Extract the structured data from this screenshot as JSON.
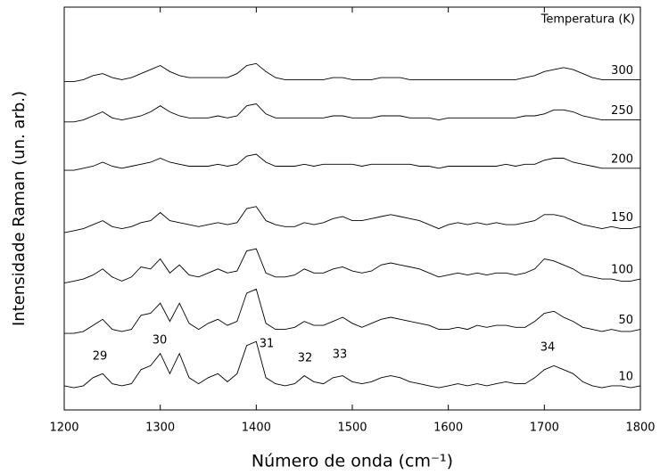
{
  "chart_data": {
    "type": "line",
    "xlabel": "Número de onda (cm⁻¹)",
    "ylabel": "Intensidade Raman (un. arb.)",
    "legend_title": "Temperatura (K)",
    "annotations": [
      "29",
      "30",
      "31",
      "32",
      "33",
      "34"
    ],
    "color": "#000000",
    "xlim": [
      1200,
      1800
    ],
    "xticks": [
      1200,
      1300,
      1400,
      1500,
      1600,
      1700,
      1800
    ],
    "ylim": [
      0,
      100
    ],
    "x": [
      1200,
      1210,
      1220,
      1230,
      1240,
      1250,
      1260,
      1270,
      1280,
      1290,
      1300,
      1310,
      1320,
      1330,
      1340,
      1350,
      1360,
      1370,
      1380,
      1390,
      1400,
      1410,
      1420,
      1430,
      1440,
      1450,
      1460,
      1470,
      1480,
      1490,
      1500,
      1510,
      1520,
      1530,
      1540,
      1550,
      1560,
      1570,
      1580,
      1590,
      1600,
      1610,
      1620,
      1630,
      1640,
      1650,
      1660,
      1670,
      1680,
      1690,
      1700,
      1710,
      1720,
      1730,
      1740,
      1750,
      1760,
      1770,
      1780,
      1790,
      1800
    ],
    "series": [
      {
        "name": "300",
        "values": [
          81.5,
          81.5,
          82,
          83,
          83.5,
          82.5,
          82,
          82.5,
          83.5,
          84.5,
          85.5,
          84,
          83,
          82.5,
          82.5,
          82.5,
          82.5,
          82.5,
          83.5,
          85.5,
          86,
          84,
          82.5,
          82,
          82,
          82,
          82,
          82,
          82.5,
          82.5,
          82,
          82,
          82,
          82.5,
          82.5,
          82.5,
          82,
          82,
          82,
          82,
          82,
          82,
          82,
          82,
          82,
          82,
          82,
          82,
          82.5,
          83,
          84,
          84.5,
          85,
          84.5,
          83.5,
          82.5,
          82,
          82,
          82,
          82,
          82
        ]
      },
      {
        "name": "250",
        "values": [
          71.5,
          71.5,
          72,
          73,
          74,
          72.5,
          72,
          72.5,
          73,
          74,
          75.5,
          74,
          73,
          72.5,
          72.5,
          72.5,
          73,
          72.5,
          73,
          75.5,
          76,
          73.5,
          72.5,
          72.5,
          72.5,
          72.5,
          72.5,
          72.5,
          73,
          73,
          72.5,
          72.5,
          72.5,
          73,
          73,
          73,
          72.5,
          72.5,
          72.5,
          72,
          72.5,
          72.5,
          72.5,
          72.5,
          72.5,
          72.5,
          72.5,
          72.5,
          73,
          73,
          73.5,
          74.5,
          74.5,
          74,
          73,
          72.5,
          72,
          72,
          72,
          72,
          72
        ]
      },
      {
        "name": "200",
        "values": [
          59.5,
          59.5,
          60,
          60.5,
          61.5,
          60.5,
          60,
          60.5,
          61,
          61.5,
          62.5,
          61.5,
          61,
          60.5,
          60.5,
          60.5,
          61,
          60.5,
          61,
          63,
          63.5,
          61.5,
          60.5,
          60.5,
          60.5,
          61,
          60.5,
          61,
          61,
          61,
          61,
          60.5,
          61,
          61,
          61,
          61,
          61,
          60.5,
          60.5,
          60,
          60.5,
          60.5,
          60.5,
          60.5,
          60.5,
          60.5,
          61,
          60.5,
          61,
          61,
          62,
          62.5,
          62.5,
          61.5,
          61,
          60.5,
          60,
          60,
          60,
          60,
          60
        ]
      },
      {
        "name": "150",
        "values": [
          44,
          44.5,
          45,
          46,
          47,
          45.5,
          45,
          45.5,
          46.5,
          47,
          49,
          47,
          46.5,
          46,
          45.5,
          46,
          46.5,
          46,
          46.5,
          50,
          50.5,
          47,
          46,
          45.5,
          45.5,
          46.5,
          46,
          46.5,
          47.5,
          48,
          47,
          47,
          47.5,
          48,
          48.5,
          48,
          47.5,
          47,
          46,
          45,
          46,
          46.5,
          46,
          46.5,
          46,
          46.5,
          46,
          46,
          46.5,
          47,
          48.5,
          48.5,
          48,
          47,
          46,
          45.5,
          45,
          45.5,
          45,
          45,
          45.5
        ]
      },
      {
        "name": "100",
        "values": [
          31.5,
          32,
          32.5,
          33.5,
          35,
          33,
          32,
          33,
          35.5,
          35,
          37.5,
          34,
          36,
          33.5,
          33,
          34,
          35,
          34,
          34.5,
          39.5,
          40,
          34,
          33,
          33,
          33.5,
          35,
          34,
          34,
          35,
          35.5,
          34.5,
          34,
          34.5,
          36,
          36.5,
          36,
          35.5,
          35,
          34,
          33,
          33.5,
          34,
          33.5,
          34,
          33.5,
          34,
          34,
          33.5,
          34,
          35,
          37.5,
          37,
          36,
          35,
          33.5,
          33,
          32.5,
          32.5,
          32,
          32,
          32.5
        ]
      },
      {
        "name": "50",
        "values": [
          19,
          19,
          19.5,
          21,
          22.5,
          20,
          19.5,
          20,
          23.5,
          24,
          26.5,
          22,
          26.5,
          21.5,
          20,
          21.5,
          22.5,
          21,
          22,
          29,
          30,
          21.5,
          20,
          20,
          20.5,
          22,
          21,
          21,
          22,
          23,
          21.5,
          20.5,
          21.5,
          22.5,
          23,
          22.5,
          22,
          21.5,
          21,
          20,
          20,
          20.5,
          20,
          21,
          20.5,
          21,
          21,
          20.5,
          20.5,
          22,
          24,
          24.5,
          23,
          22,
          20.5,
          20,
          19.5,
          20,
          19.5,
          19.5,
          20
        ]
      },
      {
        "name": "10",
        "values": [
          6,
          5.5,
          6,
          8,
          9,
          6.5,
          6,
          6.5,
          10,
          11,
          14,
          9,
          14,
          8,
          6.5,
          8,
          9,
          7,
          9,
          16,
          17,
          8,
          6.5,
          6,
          6.5,
          8.5,
          7,
          6.5,
          8,
          8.5,
          7,
          6.5,
          7,
          8,
          8.5,
          8,
          7,
          6.5,
          6,
          5.5,
          6,
          6.5,
          6,
          6.5,
          6,
          6.5,
          7,
          6.5,
          6.5,
          8,
          10,
          11,
          10,
          9,
          7,
          6,
          5.5,
          6,
          6,
          5.5,
          6
        ]
      }
    ]
  }
}
